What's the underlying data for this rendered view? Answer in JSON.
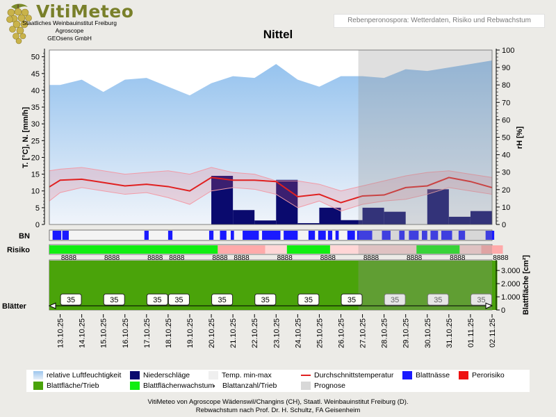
{
  "header": {
    "brand": "VitiMeteo",
    "institution": [
      "Staatliches Weinbauinstitut Freiburg",
      "Agroscope",
      "GEOsens GmbH"
    ],
    "subtitle": "Rebenperonospora: Wetterdaten, Risiko und Rebwachstum"
  },
  "footer": {
    "line1": "VitiMeteo von Agroscope Wädenswil/Changins (CH), Staatl. Weinbauinstitut Freiburg (D).",
    "line2": "Rebwachstum nach Prof. Dr. H. Schultz, FA Geisenheim"
  },
  "legend": {
    "items": [
      {
        "label": "relative Luftfeuchtigkeit",
        "kind": "grad"
      },
      {
        "label": "Niederschläge",
        "kind": "box",
        "color": "#0a0a6e"
      },
      {
        "label": "Temp. min-max",
        "kind": "box",
        "color": "#efefef"
      },
      {
        "label": "Durchschnittstemperatur",
        "kind": "line",
        "color": "#e02020"
      },
      {
        "label": "Blattnässe",
        "kind": "box",
        "color": "#1a1aff"
      },
      {
        "label": "Perorisiko",
        "kind": "box",
        "color": "#ee1111"
      },
      {
        "label": "Blattfläche/Trieb",
        "kind": "box",
        "color": "#4aa30a"
      },
      {
        "label": "Blattflächenwachstum",
        "kind": "box",
        "color": "#11ee11"
      },
      {
        "label": "Blattanzahl/Trieb",
        "kind": "dot",
        "color": "#555555"
      },
      {
        "label": "Prognose",
        "kind": "box",
        "color": "#d8d8d8"
      }
    ]
  },
  "chart_data": {
    "type": "combined",
    "title": "Nittel",
    "dates": [
      "13.10.25",
      "14.10.25",
      "15.10.25",
      "16.10.25",
      "17.10.25",
      "18.10.25",
      "19.10.25",
      "20.10.25",
      "21.10.25",
      "22.10.25",
      "23.10.25",
      "24.10.25",
      "25.10.25",
      "26.10.25",
      "27.10.25",
      "28.10.25",
      "29.10.25",
      "30.10.25",
      "31.10.25",
      "01.11.25",
      "02.11.25"
    ],
    "forecast_start": "27.10.25",
    "left_axis": {
      "label": "T. [°C], N. [mm/h]",
      "min": 0,
      "max": 52,
      "ticks": [
        0,
        5,
        10,
        15,
        20,
        25,
        30,
        35,
        40,
        45,
        50
      ]
    },
    "right_axis": {
      "label": "rH [%]",
      "min": 0,
      "max": 100,
      "ticks": [
        0,
        10,
        20,
        30,
        40,
        50,
        60,
        70,
        80,
        90,
        100
      ]
    },
    "humidity": {
      "t": [
        -0.5,
        0,
        1,
        2,
        3,
        4,
        5,
        6,
        7,
        8,
        9,
        10,
        11,
        12,
        13,
        14,
        15,
        16,
        17,
        18,
        19,
        20
      ],
      "v": [
        80,
        80,
        83,
        76,
        83,
        84,
        79,
        74,
        81,
        85,
        84,
        92,
        83,
        79,
        85,
        85,
        84,
        89,
        88,
        90,
        92,
        94
      ]
    },
    "temp_mean": {
      "t": [
        -0.5,
        0,
        1,
        2,
        3,
        4,
        5,
        6,
        7,
        8,
        9,
        10,
        11,
        12,
        13,
        14,
        15,
        16,
        17,
        18,
        19,
        20
      ],
      "v": [
        11.2,
        13.2,
        13.5,
        12.5,
        11.5,
        12.0,
        11.3,
        10.0,
        14.0,
        13.2,
        13.2,
        12.8,
        8.3,
        9.0,
        6.5,
        8.5,
        8.8,
        11.0,
        11.5,
        14.0,
        12.8,
        11.0
      ]
    },
    "temp_max": {
      "t": [
        -0.5,
        0,
        1,
        2,
        3,
        4,
        5,
        6,
        7,
        8,
        9,
        10,
        11,
        12,
        13,
        14,
        15,
        16,
        17,
        18,
        19,
        20
      ],
      "v": [
        16,
        16.5,
        17,
        16,
        15,
        15.5,
        16,
        15,
        17,
        15.5,
        15,
        13,
        13,
        12,
        10,
        11.5,
        13,
        14.5,
        15.5,
        16,
        15,
        14
      ]
    },
    "temp_min": {
      "t": [
        -0.5,
        0,
        1,
        2,
        3,
        4,
        5,
        6,
        7,
        8,
        9,
        10,
        11,
        12,
        13,
        14,
        15,
        16,
        17,
        18,
        19,
        20
      ],
      "v": [
        7,
        9.5,
        11,
        10,
        9,
        9.5,
        8,
        6,
        10,
        11,
        10.5,
        9,
        5,
        7,
        4,
        6,
        7,
        7.5,
        9,
        11,
        10,
        9
      ]
    },
    "precipitation": [
      {
        "start": 7.0,
        "end": 8.0,
        "value": 14.5
      },
      {
        "start": 8.0,
        "end": 9.0,
        "value": 4.3
      },
      {
        "start": 9.0,
        "end": 10.0,
        "value": 1.2
      },
      {
        "start": 10.0,
        "end": 11.0,
        "value": 13.3
      },
      {
        "start": 11.0,
        "end": 12.0,
        "value": 0.4
      },
      {
        "start": 12.0,
        "end": 13.0,
        "value": 5.0
      },
      {
        "start": 13.0,
        "end": 14.0,
        "value": 1.3
      },
      {
        "start": 14.0,
        "end": 15.0,
        "value": 5.0
      },
      {
        "start": 15.0,
        "end": 16.0,
        "value": 3.8
      },
      {
        "start": 17.0,
        "end": 18.0,
        "value": 10.5
      },
      {
        "start": 18.0,
        "end": 19.0,
        "value": 2.3
      },
      {
        "start": 19.0,
        "end": 20.0,
        "value": 4.0
      }
    ],
    "bn_label": "BN",
    "leaf_wetness": [
      [
        -0.35,
        0.05
      ],
      [
        0.1,
        0.4
      ],
      [
        3.9,
        4.1
      ],
      [
        5.0,
        5.2
      ],
      [
        6.9,
        7.1
      ],
      [
        7.4,
        7.7
      ],
      [
        7.9,
        8.05
      ],
      [
        8.45,
        9.2
      ],
      [
        9.35,
        10.2
      ],
      [
        10.35,
        11.0
      ],
      [
        11.5,
        11.8
      ],
      [
        11.95,
        12.3
      ],
      [
        12.4,
        12.6
      ],
      [
        12.75,
        12.9
      ],
      [
        13.3,
        13.65
      ],
      [
        13.75,
        14.45
      ],
      [
        14.9,
        15.3
      ],
      [
        15.7,
        15.95
      ],
      [
        16.15,
        16.6
      ],
      [
        16.75,
        17.0
      ],
      [
        17.15,
        17.5
      ],
      [
        17.65,
        18.15
      ],
      [
        18.45,
        18.75
      ],
      [
        19.7,
        20.1
      ]
    ],
    "risiko_label": "Risiko",
    "risk": [
      {
        "start": -0.5,
        "end": 7.3,
        "color": "#11ee11"
      },
      {
        "start": 7.3,
        "end": 9.5,
        "color": "#ffaaaa"
      },
      {
        "start": 9.5,
        "end": 10.5,
        "color": "#ffd6d6"
      },
      {
        "start": 10.5,
        "end": 12.5,
        "color": "#11ee11"
      },
      {
        "start": 12.5,
        "end": 16.5,
        "color": "#ffd6d6"
      },
      {
        "start": 16.5,
        "end": 18.5,
        "color": "#11ee11"
      },
      {
        "start": 18.5,
        "end": 19.5,
        "color": "#ffd6d6"
      },
      {
        "start": 19.5,
        "end": 20.5,
        "color": "#ffaaaa"
      }
    ],
    "blatt_axis": {
      "label": "Blattfläche [cm²]",
      "min": 0,
      "max": 3800,
      "ticks": [
        0,
        1000,
        2000,
        3000
      ],
      "tick_labels": [
        "0",
        "1.000",
        "2.000",
        "3.000"
      ]
    },
    "leaf_area": {
      "end": 20.5,
      "value": 3750
    },
    "leaf_marks": {
      "positions": [
        0.4,
        2.4,
        4.4,
        5.4,
        7.4,
        8.4,
        10.4,
        12.4,
        14.4,
        16.4,
        18.4,
        20.4
      ],
      "text": "8888"
    },
    "blaetter_label": "Blätter",
    "leaf_count": {
      "positions": [
        0.5,
        2.5,
        4.5,
        5.5,
        7.5,
        9.5,
        11.5,
        13.5,
        15.5,
        17.5,
        19.5
      ],
      "value": "35"
    }
  }
}
